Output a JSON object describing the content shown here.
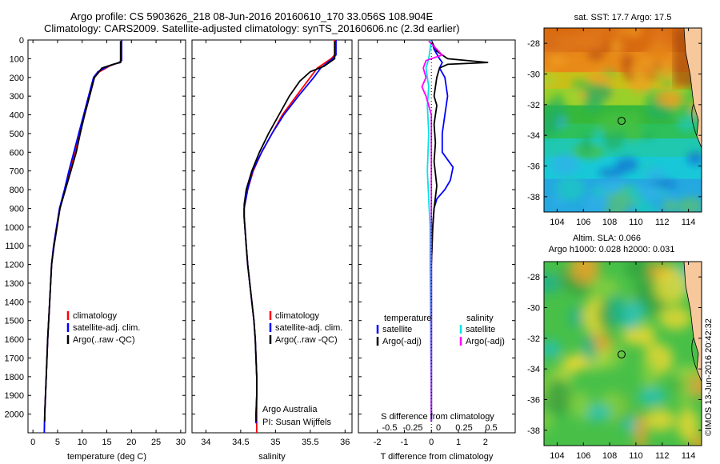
{
  "title_line1": "Argo profile: CS 5903626_218 08-Jun-2016 20160610_170 33.056S 108.904E",
  "title_line2": "Climatology: CARS2009. Satellite-adjusted climatology: synTS_20160606.nc (2.3d earlier)",
  "credit": "©IMOS 13-Jun-2016 20:42:32",
  "colors": {
    "climatology": "#ff0000",
    "satellite": "#0000ff",
    "argo": "#000000",
    "sal_satellite": "#00e5e5",
    "sal_argo": "#ff00ff"
  },
  "chart_data": [
    {
      "type": "line",
      "xlabel": "temperature (deg C)",
      "ylabel": "",
      "xlim": [
        -1,
        31
      ],
      "ylim": [
        2100,
        0
      ],
      "y_ticks": [
        0,
        100,
        200,
        300,
        400,
        500,
        600,
        700,
        800,
        900,
        1000,
        1100,
        1200,
        1300,
        1400,
        1500,
        1600,
        1700,
        1800,
        1900,
        2000
      ],
      "x_ticks": [
        0,
        5,
        10,
        15,
        20,
        25,
        30
      ],
      "legend": [
        "climatology",
        "satellite-adj. clim.",
        "Argo(..raw -QC)"
      ],
      "legend_position": "bottom-center",
      "series": [
        {
          "name": "climatology",
          "color": "#ff0000",
          "points": [
            [
              18.0,
              0
            ],
            [
              18.0,
              110
            ],
            [
              17.5,
              120
            ],
            [
              15.5,
              140
            ],
            [
              13.5,
              170
            ],
            [
              12.5,
              200
            ],
            [
              11.5,
              300
            ],
            [
              10.5,
              400
            ],
            [
              9.5,
              500
            ],
            [
              8.5,
              600
            ],
            [
              7.5,
              700
            ],
            [
              6.5,
              800
            ],
            [
              5.5,
              900
            ],
            [
              4.8,
              1000
            ],
            [
              4.2,
              1100
            ],
            [
              3.8,
              1200
            ],
            [
              3.4,
              1400
            ],
            [
              3.0,
              1600
            ],
            [
              2.7,
              1800
            ],
            [
              2.4,
              2000
            ],
            [
              2.3,
              2100
            ]
          ]
        },
        {
          "name": "satellite-adj. clim.",
          "color": "#0000ff",
          "points": [
            [
              18.0,
              0
            ],
            [
              18.0,
              110
            ],
            [
              17.5,
              120
            ],
            [
              15.3,
              140
            ],
            [
              13.2,
              170
            ],
            [
              12.3,
              200
            ],
            [
              11.3,
              300
            ],
            [
              10.3,
              400
            ],
            [
              9.3,
              500
            ],
            [
              8.3,
              600
            ],
            [
              7.3,
              700
            ],
            [
              6.4,
              800
            ],
            [
              5.4,
              900
            ],
            [
              4.8,
              1000
            ],
            [
              4.2,
              1100
            ],
            [
              3.8,
              1200
            ],
            [
              3.4,
              1400
            ],
            [
              3.0,
              1600
            ],
            [
              2.7,
              1800
            ],
            [
              2.4,
              2000
            ],
            [
              2.3,
              2100
            ]
          ]
        },
        {
          "name": "Argo(..raw -QC)",
          "color": "#000000",
          "points": [
            [
              17.8,
              5
            ],
            [
              17.8,
              120
            ],
            [
              17.0,
              125
            ],
            [
              16.3,
              130
            ],
            [
              14.0,
              150
            ],
            [
              12.5,
              200
            ],
            [
              11.5,
              300
            ],
            [
              10.5,
              400
            ],
            [
              9.6,
              500
            ],
            [
              8.8,
              600
            ],
            [
              7.7,
              700
            ],
            [
              6.6,
              800
            ],
            [
              5.5,
              900
            ],
            [
              4.9,
              1000
            ],
            [
              4.3,
              1100
            ],
            [
              3.8,
              1200
            ],
            [
              3.4,
              1400
            ],
            [
              3.0,
              1600
            ],
            [
              2.7,
              1800
            ],
            [
              2.4,
              2000
            ],
            [
              2.4,
              2040
            ]
          ]
        }
      ]
    },
    {
      "type": "line",
      "xlabel": "salinity",
      "ylabel": "",
      "xlim": [
        33.8,
        36.1
      ],
      "ylim": [
        2100,
        0
      ],
      "x_ticks": [
        34,
        34.5,
        35,
        35.5,
        36
      ],
      "legend": [
        "climatology",
        "satellite-adj. clim.",
        "Argo(..raw -QC)"
      ],
      "legend_position": "bottom-right",
      "annotations": [
        "Argo Australia",
        "PI: Susan Wijffels"
      ],
      "series": [
        {
          "name": "climatology",
          "color": "#ff0000",
          "points": [
            [
              35.85,
              0
            ],
            [
              35.85,
              80
            ],
            [
              35.8,
              100
            ],
            [
              35.6,
              150
            ],
            [
              35.5,
              200
            ],
            [
              35.3,
              300
            ],
            [
              35.1,
              400
            ],
            [
              34.95,
              500
            ],
            [
              34.8,
              600
            ],
            [
              34.68,
              700
            ],
            [
              34.6,
              800
            ],
            [
              34.55,
              900
            ],
            [
              34.55,
              950
            ],
            [
              34.56,
              1000
            ],
            [
              34.58,
              1100
            ],
            [
              34.6,
              1200
            ],
            [
              34.63,
              1300
            ],
            [
              34.66,
              1400
            ],
            [
              34.69,
              1500
            ],
            [
              34.71,
              1600
            ],
            [
              34.72,
              1700
            ],
            [
              34.73,
              1800
            ],
            [
              34.73,
              1900
            ],
            [
              34.73,
              2000
            ],
            [
              34.73,
              2100
            ]
          ]
        },
        {
          "name": "satellite-adj. clim.",
          "color": "#0000ff",
          "points": [
            [
              35.87,
              0
            ],
            [
              35.87,
              80
            ],
            [
              35.82,
              100
            ],
            [
              35.65,
              150
            ],
            [
              35.55,
              200
            ],
            [
              35.33,
              300
            ],
            [
              35.12,
              400
            ],
            [
              34.95,
              500
            ],
            [
              34.8,
              600
            ],
            [
              34.67,
              700
            ],
            [
              34.6,
              800
            ],
            [
              34.55,
              900
            ],
            [
              34.55,
              950
            ],
            [
              34.56,
              1000
            ],
            [
              34.58,
              1100
            ],
            [
              34.6,
              1200
            ],
            [
              34.63,
              1300
            ],
            [
              34.66,
              1400
            ],
            [
              34.69,
              1500
            ],
            [
              34.71,
              1600
            ],
            [
              34.72,
              1700
            ],
            [
              34.73,
              1800
            ],
            [
              34.73,
              1900
            ],
            [
              34.72,
              2000
            ],
            [
              34.72,
              2050
            ]
          ]
        },
        {
          "name": "Argo(..raw -QC)",
          "color": "#000000",
          "points": [
            [
              35.85,
              5
            ],
            [
              35.85,
              100
            ],
            [
              35.7,
              140
            ],
            [
              35.5,
              170
            ],
            [
              35.35,
              220
            ],
            [
              35.2,
              300
            ],
            [
              35.05,
              400
            ],
            [
              34.9,
              500
            ],
            [
              34.77,
              600
            ],
            [
              34.66,
              700
            ],
            [
              34.58,
              800
            ],
            [
              34.55,
              880
            ],
            [
              34.55,
              940
            ],
            [
              34.56,
              1000
            ],
            [
              34.58,
              1100
            ],
            [
              34.6,
              1200
            ],
            [
              34.63,
              1300
            ],
            [
              34.66,
              1400
            ],
            [
              34.69,
              1500
            ],
            [
              34.71,
              1600
            ],
            [
              34.72,
              1700
            ],
            [
              34.73,
              1800
            ],
            [
              34.73,
              1900
            ],
            [
              34.72,
              2000
            ],
            [
              34.72,
              2040
            ]
          ]
        }
      ]
    },
    {
      "type": "line",
      "xlabel": "T difference from climatology",
      "ylabel": "",
      "xlim": [
        -2.7,
        3.1
      ],
      "ylim": [
        2100,
        0
      ],
      "x_ticks": [
        -2,
        -1,
        0,
        1,
        2
      ],
      "top_xlabel": "S difference from climatology",
      "top_x_ticks": [
        "-0.5",
        "-0.25",
        "0",
        "0.25",
        "0.5"
      ],
      "legend_left_title": "temperature",
      "legend_right_title": "salinity",
      "legend": [
        "satellite",
        "Argo(-adj)",
        "satellite",
        "Argo(-adj)"
      ],
      "legend_position": "bottom",
      "series": [
        {
          "name": "satellite",
          "group": "temperature",
          "color": "#0000ff",
          "points": [
            [
              0.0,
              0
            ],
            [
              0.1,
              50
            ],
            [
              0.3,
              100
            ],
            [
              0.4,
              120
            ],
            [
              0.3,
              150
            ],
            [
              0.5,
              200
            ],
            [
              0.6,
              300
            ],
            [
              0.5,
              400
            ],
            [
              0.4,
              500
            ],
            [
              0.4,
              600
            ],
            [
              0.8,
              680
            ],
            [
              0.7,
              750
            ],
            [
              0.5,
              800
            ],
            [
              0.2,
              850
            ],
            [
              0.1,
              900
            ],
            [
              0.05,
              1000
            ],
            [
              0.0,
              1200
            ],
            [
              0.0,
              2040
            ]
          ]
        },
        {
          "name": "Argo(-adj)",
          "group": "temperature",
          "color": "#000000",
          "points": [
            [
              0.0,
              5
            ],
            [
              0.2,
              60
            ],
            [
              0.6,
              100
            ],
            [
              2.1,
              120
            ],
            [
              0.6,
              130
            ],
            [
              0.3,
              150
            ],
            [
              0.2,
              200
            ],
            [
              0.1,
              300
            ],
            [
              0.2,
              350
            ],
            [
              0.1,
              450
            ],
            [
              0.15,
              550
            ],
            [
              0.1,
              650
            ],
            [
              0.2,
              780
            ],
            [
              0.1,
              900
            ],
            [
              0.05,
              1000
            ],
            [
              0.0,
              1200
            ],
            [
              0.0,
              2040
            ]
          ]
        },
        {
          "name": "satellite",
          "group": "salinity",
          "color": "#00e5e5",
          "points": [
            [
              0.0,
              0
            ],
            [
              -0.1,
              100
            ],
            [
              -0.2,
              150
            ],
            [
              -0.1,
              250
            ],
            [
              -0.15,
              350
            ],
            [
              -0.1,
              500
            ],
            [
              -0.15,
              700
            ],
            [
              -0.1,
              850
            ],
            [
              -0.05,
              1000
            ],
            [
              -0.05,
              1200
            ],
            [
              0.0,
              2040
            ]
          ]
        },
        {
          "name": "Argo(-adj)",
          "group": "salinity",
          "color": "#ff00ff",
          "points": [
            [
              -0.1,
              5
            ],
            [
              0.4,
              80
            ],
            [
              -0.2,
              110
            ],
            [
              -0.3,
              150
            ],
            [
              -0.2,
              200
            ],
            [
              -0.35,
              250
            ],
            [
              -0.2,
              300
            ],
            [
              0.0,
              400
            ],
            [
              0.0,
              2040
            ]
          ]
        }
      ]
    },
    {
      "type": "heatmap",
      "title": "sat. SST: 17.7 Argo: 17.5",
      "xlim": [
        103,
        115
      ],
      "ylim": [
        -39,
        -27
      ],
      "x_ticks": [
        104,
        106,
        108,
        110,
        112,
        114
      ],
      "y_ticks": [
        -28,
        -30,
        -32,
        -34,
        -36,
        -38
      ],
      "marker": {
        "lon": 108.904,
        "lat": -33.056
      }
    },
    {
      "type": "heatmap",
      "title": "Altim. SLA: 0.066",
      "subtitle": "Argo h1000: 0.028 h2000: 0.031",
      "xlim": [
        103,
        115
      ],
      "ylim": [
        -39,
        -27
      ],
      "x_ticks": [
        104,
        106,
        108,
        110,
        112,
        114
      ],
      "y_ticks": [
        -28,
        -30,
        -32,
        -34,
        -36,
        -38
      ],
      "marker": {
        "lon": 108.904,
        "lat": -33.056
      }
    }
  ]
}
